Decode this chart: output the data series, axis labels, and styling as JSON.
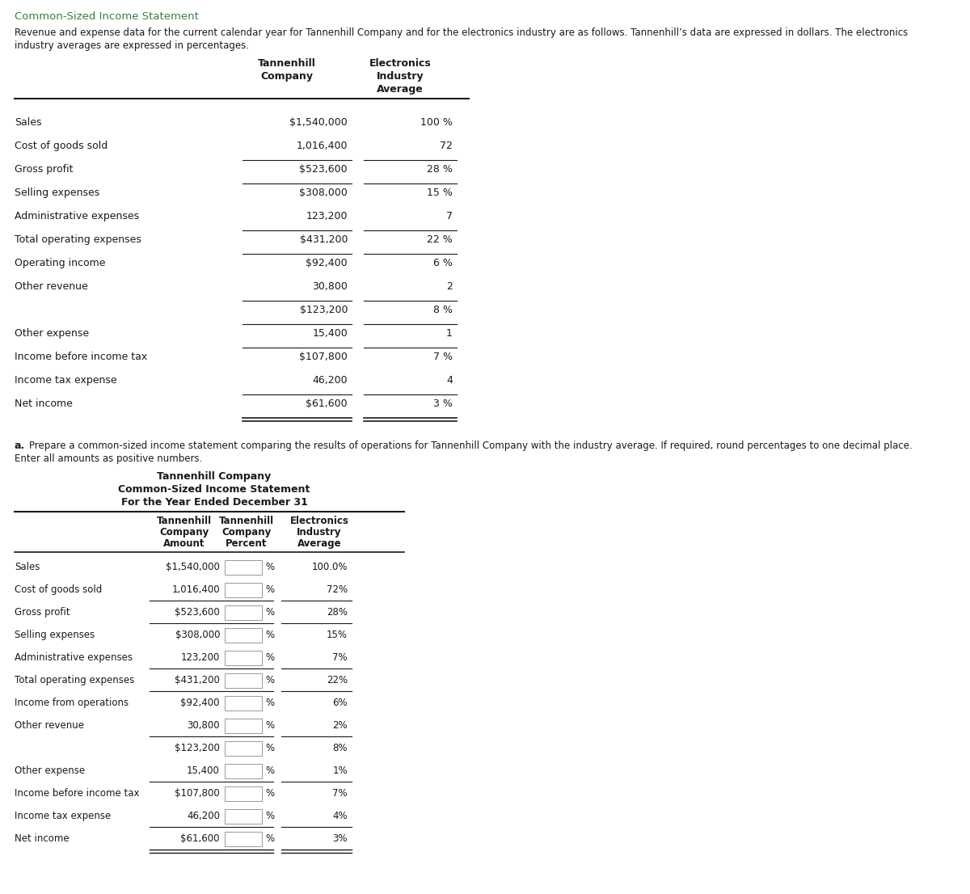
{
  "title_green": "Common-Sized Income Statement",
  "intro_line1": "Revenue and expense data for the current calendar year for Tannenhill Company and for the electronics industry are as follows. Tannenhill’s data are expressed in dollars. The electronics",
  "intro_line2": "industry averages are expressed in percentages.",
  "section1": {
    "rows": [
      {
        "label": "Sales",
        "amount": "$1,540,000",
        "industry": "100 %",
        "single_line_after": false,
        "double_line_after": false
      },
      {
        "label": "Cost of goods sold",
        "amount": "1,016,400",
        "industry": "72",
        "single_line_after": true,
        "double_line_after": false
      },
      {
        "label": "Gross profit",
        "amount": "$523,600",
        "industry": "28 %",
        "single_line_after": true,
        "double_line_after": false
      },
      {
        "label": "Selling expenses",
        "amount": "$308,000",
        "industry": "15 %",
        "single_line_after": false,
        "double_line_after": false
      },
      {
        "label": "Administrative expenses",
        "amount": "123,200",
        "industry": "7",
        "single_line_after": true,
        "double_line_after": false
      },
      {
        "label": "Total operating expenses",
        "amount": "$431,200",
        "industry": "22 %",
        "single_line_after": true,
        "double_line_after": false
      },
      {
        "label": "Operating income",
        "amount": "$92,400",
        "industry": "6 %",
        "single_line_after": false,
        "double_line_after": false
      },
      {
        "label": "Other revenue",
        "amount": "30,800",
        "industry": "2",
        "single_line_after": true,
        "double_line_after": false
      },
      {
        "label": "",
        "amount": "$123,200",
        "industry": "8 %",
        "single_line_after": true,
        "double_line_after": false
      },
      {
        "label": "Other expense",
        "amount": "15,400",
        "industry": "1",
        "single_line_after": true,
        "double_line_after": false
      },
      {
        "label": "Income before income tax",
        "amount": "$107,800",
        "industry": "7 %",
        "single_line_after": false,
        "double_line_after": false
      },
      {
        "label": "Income tax expense",
        "amount": "46,200",
        "industry": "4",
        "single_line_after": true,
        "double_line_after": false
      },
      {
        "label": "Net income",
        "amount": "$61,600",
        "industry": "3 %",
        "single_line_after": false,
        "double_line_after": true
      }
    ]
  },
  "part_a_label": "a.",
  "part_a_line1": "Prepare a common-sized income statement comparing the results of operations for Tannenhill Company with the industry average. If required, round percentages to one decimal place.",
  "part_a_line2": "Enter all amounts as positive numbers.",
  "section2_title1": "Tannenhill Company",
  "section2_title2": "Common-Sized Income Statement",
  "section2_title3": "For the Year Ended December 31",
  "section2_rows": [
    {
      "label": "Sales",
      "amount": "$1,540,000",
      "industry": "100.0%",
      "single_line_after": false,
      "double_line_after": false
    },
    {
      "label": "Cost of goods sold",
      "amount": "1,016,400",
      "industry": "72%",
      "single_line_after": true,
      "double_line_after": false
    },
    {
      "label": "Gross profit",
      "amount": "$523,600",
      "industry": "28%",
      "single_line_after": true,
      "double_line_after": false
    },
    {
      "label": "Selling expenses",
      "amount": "$308,000",
      "industry": "15%",
      "single_line_after": false,
      "double_line_after": false
    },
    {
      "label": "Administrative expenses",
      "amount": "123,200",
      "industry": "7%",
      "single_line_after": true,
      "double_line_after": false
    },
    {
      "label": "Total operating expenses",
      "amount": "$431,200",
      "industry": "22%",
      "single_line_after": true,
      "double_line_after": false
    },
    {
      "label": "Income from operations",
      "amount": "$92,400",
      "industry": "6%",
      "single_line_after": false,
      "double_line_after": false
    },
    {
      "label": "Other revenue",
      "amount": "30,800",
      "industry": "2%",
      "single_line_after": true,
      "double_line_after": false
    },
    {
      "label": "",
      "amount": "$123,200",
      "industry": "8%",
      "single_line_after": false,
      "double_line_after": false
    },
    {
      "label": "Other expense",
      "amount": "15,400",
      "industry": "1%",
      "single_line_after": true,
      "double_line_after": false
    },
    {
      "label": "Income before income tax",
      "amount": "$107,800",
      "industry": "7%",
      "single_line_after": false,
      "double_line_after": false
    },
    {
      "label": "Income tax expense",
      "amount": "46,200",
      "industry": "4%",
      "single_line_after": true,
      "double_line_after": false
    },
    {
      "label": "Net income",
      "amount": "$61,600",
      "industry": "3%",
      "single_line_after": false,
      "double_line_after": true
    }
  ],
  "green_color": "#3a7d44",
  "black_color": "#1a1a1a",
  "box_edge_color": "#999999",
  "fs_title": 9.0,
  "fs_body": 9.0,
  "fs_small": 8.5
}
